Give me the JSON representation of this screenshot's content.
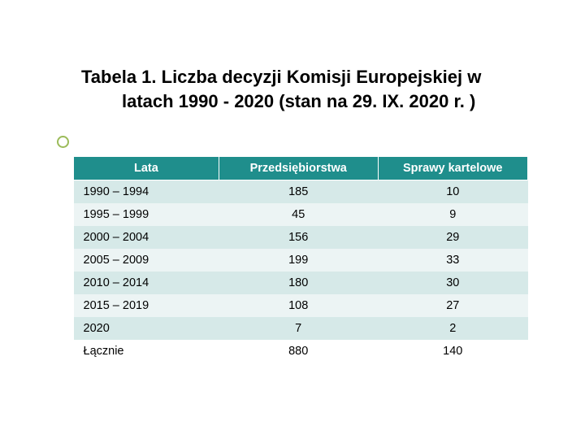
{
  "title": {
    "line1": "Tabela 1. Liczba decyzji Komisji Europejskiej w",
    "line2": "latach 1990 - 2020 (stan na 29. IX. 2020 r. )"
  },
  "table": {
    "type": "table",
    "header_bg": "#1f8e8c",
    "header_fg": "#ffffff",
    "row_odd_bg": "#d6e9e8",
    "row_even_bg": "#ecf4f4",
    "font_size": 14.5,
    "columns": [
      "Lata",
      "Przedsiębiorstwa",
      "Sprawy kartelowe"
    ],
    "rows": [
      {
        "c0": "1990 – 1994",
        "c1": "185",
        "c2": "10"
      },
      {
        "c0": "1995 – 1999",
        "c1": "45",
        "c2": "9"
      },
      {
        "c0": "2000 – 2004",
        "c1": "156",
        "c2": "29"
      },
      {
        "c0": "2005 – 2009",
        "c1": "199",
        "c2": "33"
      },
      {
        "c0": "2010 – 2014",
        "c1": "180",
        "c2": "30"
      },
      {
        "c0": "2015 – 2019",
        "c1": "108",
        "c2": "27"
      },
      {
        "c0": "2020",
        "c1": "7",
        "c2": "2"
      },
      {
        "c0": "Łącznie",
        "c1": "880",
        "c2": "140"
      }
    ]
  },
  "bullet_color": "#9bbb59"
}
